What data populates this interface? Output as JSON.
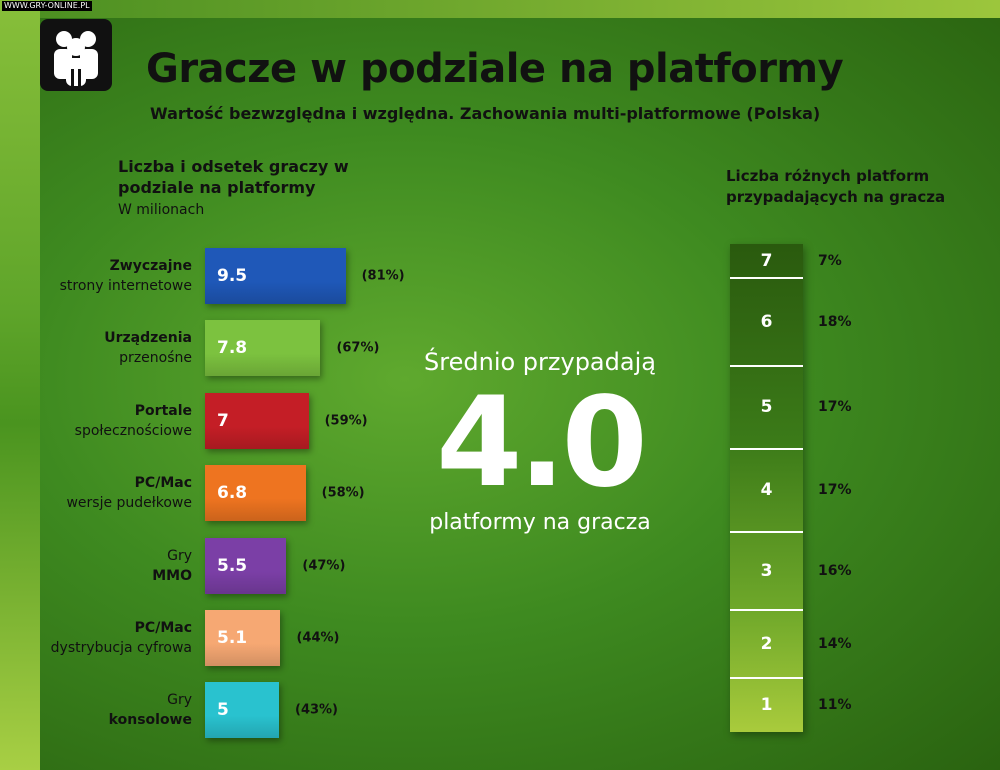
{
  "watermark": "WWW.GRY-ONLINE.PL",
  "title": "Gracze w podziale na platformy",
  "subtitle": "Wartość bezwzględna i względna. Zachowania multi-platformowe (Polska)",
  "left_heading": "Liczba i odsetek graczy w podziale na platformy",
  "left_unit": "W milionach",
  "right_heading": "Liczba różnych platform przypadających na gracza",
  "average": {
    "top": "Średnio przypadają",
    "value": "4.0",
    "bottom": "platformy na gracza"
  },
  "colors": {
    "blue": "#1f58b8",
    "green": "#7cc23f",
    "red": "#c41e26",
    "orange": "#ee7420",
    "purple": "#7b3fa6",
    "peach": "#f6a873",
    "teal": "#29c2cf",
    "logo_bg": "#111111"
  },
  "chart_data": [
    {
      "type": "bar",
      "categories": [
        {
          "line1": "Zwyczajne",
          "line2": "strony internetowe",
          "bold": 1
        },
        {
          "line1": "Urządzenia",
          "line2": "przenośne",
          "bold": 1
        },
        {
          "line1": "Portale",
          "line2": "społecznościowe",
          "bold": 1
        },
        {
          "line1": "PC/Mac",
          "line2": "wersje pudełkowe",
          "bold": 1
        },
        {
          "line1": "Gry",
          "line2": "MMO",
          "bold": 2
        },
        {
          "line1": "PC/Mac",
          "line2": "dystrybucja cyfrowa",
          "bold": 1
        },
        {
          "line1": "Gry",
          "line2": "konsolowe",
          "bold": 2
        }
      ],
      "values": [
        9.5,
        7.8,
        7,
        6.8,
        5.5,
        5.1,
        5
      ],
      "value_labels": [
        "9.5",
        "7.8",
        "7",
        "6.8",
        "5.5",
        "5.1",
        "5"
      ],
      "percent_labels": [
        "(81%)",
        "(67%)",
        "(59%)",
        "(58%)",
        "(47%)",
        "(44%)",
        "(43%)"
      ],
      "bar_colors": [
        "blue",
        "green",
        "red",
        "orange",
        "purple",
        "peach",
        "teal"
      ]
    },
    {
      "type": "bar",
      "categories": [
        "7",
        "6",
        "5",
        "4",
        "3",
        "2",
        "1"
      ],
      "values": [
        7,
        18,
        17,
        17,
        16,
        14,
        11
      ],
      "percent_labels": [
        "7%",
        "18%",
        "17%",
        "17%",
        "16%",
        "14%",
        "11%"
      ]
    }
  ]
}
